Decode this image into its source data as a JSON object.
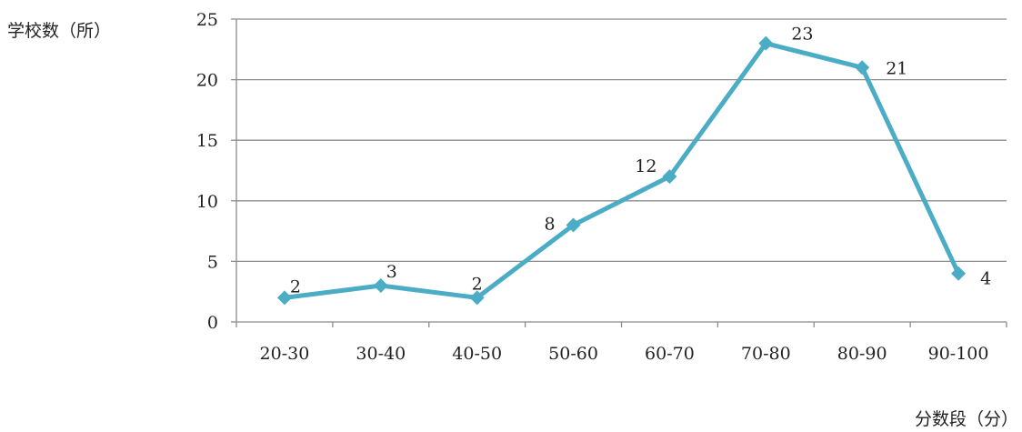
{
  "chart_data": {
    "type": "line",
    "categories": [
      "20-30",
      "30-40",
      "40-50",
      "50-60",
      "60-70",
      "70-80",
      "80-90",
      "90-100"
    ],
    "series": [
      {
        "values": [
          2,
          3,
          2,
          8,
          12,
          23,
          21,
          4
        ],
        "color": "#4bacc6",
        "marker": "diamond"
      }
    ],
    "data_labels": [
      "2",
      "3",
      "2",
      "8",
      "12",
      "23",
      "21",
      "4"
    ],
    "ylabel": "学校数（所）",
    "xlabel": "分数段（分）",
    "ylim": [
      0,
      25
    ],
    "yticks": [
      0,
      5,
      10,
      15,
      20,
      25
    ],
    "grid": "horizontal",
    "legend": "none"
  }
}
